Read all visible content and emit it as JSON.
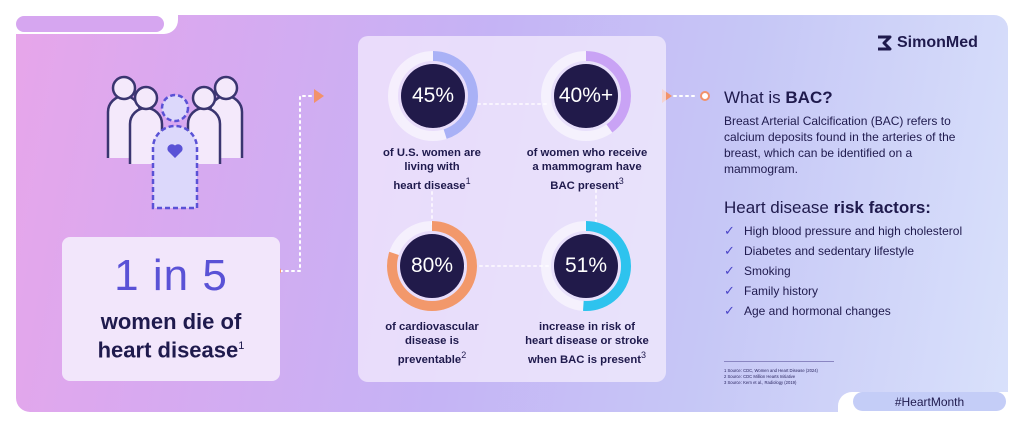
{
  "brand": {
    "name": "SimonMed"
  },
  "hashtag": "#HeartMonth",
  "headline": {
    "stat": "1 in 5",
    "line1": "women die of",
    "line2": "heart disease",
    "sup": "1"
  },
  "stats": [
    {
      "value": "45%",
      "line1": "of U.S. women are",
      "line2": "living with",
      "line3": "heart disease",
      "sup": "1",
      "percent": 45,
      "color": "#a9b1f6"
    },
    {
      "value": "40%+",
      "line1": "of women who receive",
      "line2": "a mammogram have",
      "line3": "BAC present",
      "sup": "3",
      "percent": 40,
      "color": "#c9a3f5"
    },
    {
      "value": "80%",
      "line1": "of cardiovascular",
      "line2": "disease is",
      "line3": "preventable",
      "sup": "2",
      "percent": 80,
      "color": "#f2986b"
    },
    {
      "value": "51%",
      "line1": "increase in risk of",
      "line2": "heart disease or stroke",
      "line3": "when BAC is present",
      "sup": "3",
      "percent": 51,
      "color": "#2ec3ee"
    }
  ],
  "bac": {
    "heading_prefix": "What is ",
    "heading_bold": "BAC?",
    "description": "Breast Arterial Calcification (BAC) refers to calcium deposits found in the arteries of the breast, which can be identified on a mammogram."
  },
  "risk": {
    "heading_prefix": "Heart disease ",
    "heading_bold": "risk factors:",
    "items": [
      "High blood pressure and high cholesterol",
      "Diabetes and sedentary lifestyle",
      "Smoking",
      "Family history",
      "Age and hormonal changes"
    ]
  },
  "sources": [
    "1 Source: CDC, Women and Heart Disease (2024)",
    "2 Source: CDC Million Hearts Initiative",
    "3 Source: Kern et al., Radiology (2019)"
  ],
  "colors": {
    "accent": "#5a52d6",
    "navy": "#211a4a",
    "arrow": "#f2926a"
  }
}
